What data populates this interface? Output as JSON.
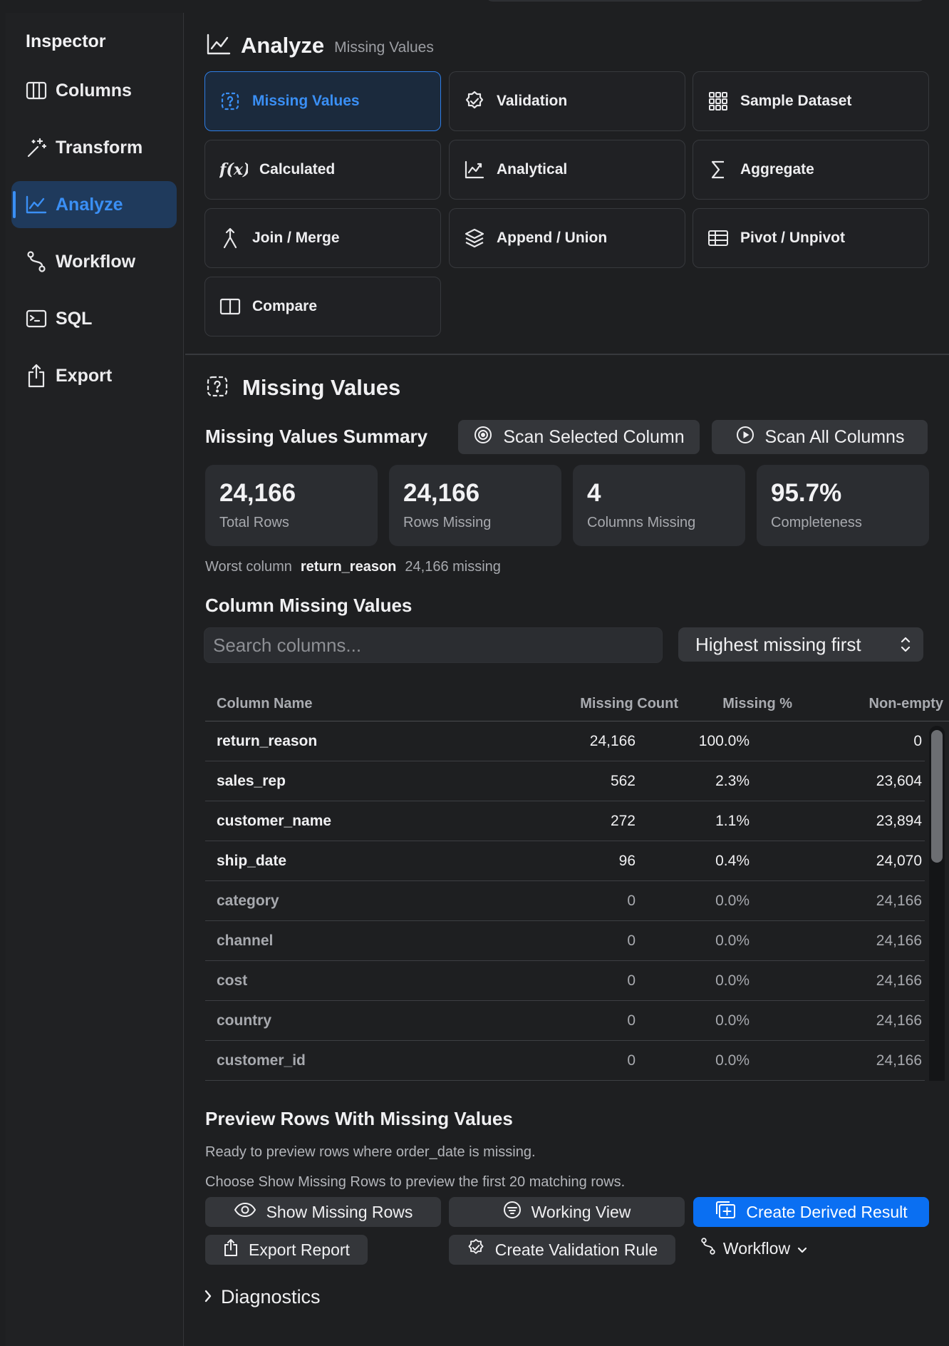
{
  "sidebar": {
    "title": "Inspector",
    "items": [
      {
        "label": "Columns",
        "icon": "columns-icon"
      },
      {
        "label": "Transform",
        "icon": "magic-wand-icon"
      },
      {
        "label": "Analyze",
        "icon": "chart-line-icon",
        "active": true
      },
      {
        "label": "Workflow",
        "icon": "workflow-icon"
      },
      {
        "label": "SQL",
        "icon": "terminal-icon"
      },
      {
        "label": "Export",
        "icon": "share-icon"
      }
    ]
  },
  "header": {
    "title": "Analyze",
    "subtitle": "Missing Values"
  },
  "tools": [
    {
      "label": "Missing Values",
      "icon": "question-dashed-icon",
      "active": true
    },
    {
      "label": "Validation",
      "icon": "checkmark-seal-icon"
    },
    {
      "label": "Sample Dataset",
      "icon": "grid-dots-icon"
    },
    {
      "label": "Calculated",
      "icon": "function-icon"
    },
    {
      "label": "Analytical",
      "icon": "chart-line-icon"
    },
    {
      "label": "Aggregate",
      "icon": "sigma-icon"
    },
    {
      "label": "Join / Merge",
      "icon": "merge-icon"
    },
    {
      "label": "Append / Union",
      "icon": "layers-icon"
    },
    {
      "label": "Pivot / Unpivot",
      "icon": "table-icon"
    },
    {
      "label": "Compare",
      "icon": "split-icon"
    }
  ],
  "section": {
    "title": "Missing Values",
    "summary_title": "Missing Values Summary",
    "scan_selected": "Scan Selected Column",
    "scan_all": "Scan All Columns"
  },
  "stats": [
    {
      "value": "24,166",
      "label": "Total Rows"
    },
    {
      "value": "24,166",
      "label": "Rows Missing"
    },
    {
      "value": "4",
      "label": "Columns Missing"
    },
    {
      "value": "95.7%",
      "label": "Completeness"
    }
  ],
  "worst": {
    "prefix": "Worst column",
    "column": "return_reason",
    "suffix": "24,166 missing"
  },
  "column_table": {
    "title": "Column Missing Values",
    "search_placeholder": "Search columns...",
    "sort_value": "Highest missing first",
    "headers": [
      "Column Name",
      "Missing Count",
      "Missing %",
      "Non-empty"
    ],
    "rows": [
      [
        "return_reason",
        "24,166",
        "100.0%",
        "0"
      ],
      [
        "sales_rep",
        "562",
        "2.3%",
        "23,604"
      ],
      [
        "customer_name",
        "272",
        "1.1%",
        "23,894"
      ],
      [
        "ship_date",
        "96",
        "0.4%",
        "24,070"
      ],
      [
        "category",
        "0",
        "0.0%",
        "24,166"
      ],
      [
        "channel",
        "0",
        "0.0%",
        "24,166"
      ],
      [
        "cost",
        "0",
        "0.0%",
        "24,166"
      ],
      [
        "country",
        "0",
        "0.0%",
        "24,166"
      ],
      [
        "customer_id",
        "0",
        "0.0%",
        "24,166"
      ]
    ]
  },
  "preview": {
    "title": "Preview Rows With Missing Values",
    "line1": "Ready to preview rows where order_date is missing.",
    "line2": "Choose Show Missing Rows to preview the first 20 matching rows.",
    "show_missing": "Show Missing Rows",
    "working_view": "Working View",
    "create_derived": "Create Derived Result",
    "export_report": "Export Report",
    "create_rule": "Create Validation Rule",
    "workflow": "Workflow"
  },
  "diagnostics": "Diagnostics",
  "colors": {
    "accent": "#0a6ff2",
    "active_bg": "#1f3a5c",
    "background": "#1e1f21"
  }
}
